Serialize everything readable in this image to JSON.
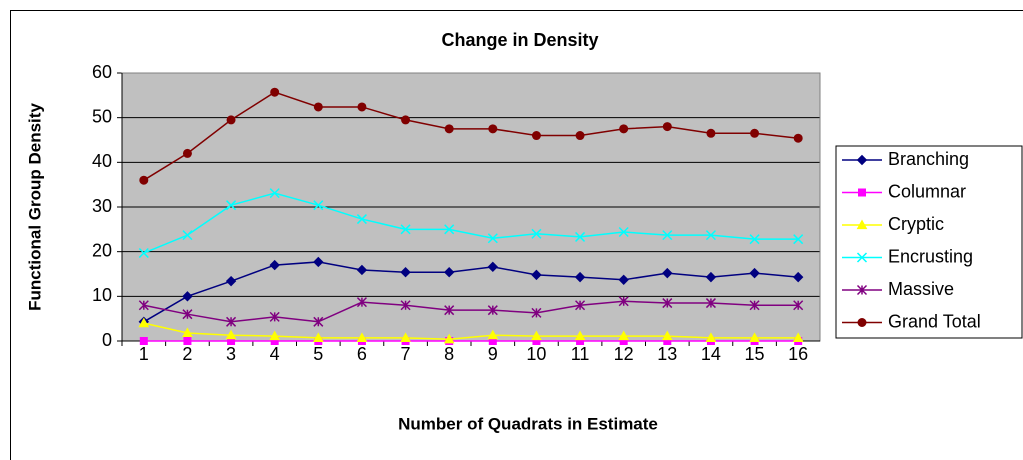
{
  "chart_data": {
    "type": "line",
    "title": "Change in Density",
    "x_label": "Number of Quadrats in Estimate",
    "y_label": "Functional Group Density",
    "categories": [
      "1",
      "2",
      "3",
      "4",
      "5",
      "6",
      "7",
      "8",
      "9",
      "10",
      "11",
      "12",
      "13",
      "14",
      "15",
      "16"
    ],
    "ylim": [
      0,
      60
    ],
    "yticks": [
      0,
      10,
      20,
      30,
      40,
      50,
      60
    ],
    "grid": true,
    "legend": "right",
    "series": [
      {
        "name": "Branching",
        "color": "#000080",
        "marker": "diamond",
        "values": [
          4.3,
          10,
          13.4,
          17,
          17.7,
          15.9,
          15.4,
          15.4,
          16.6,
          14.8,
          14.3,
          13.7,
          15.2,
          14.3,
          15.2,
          14.3
        ]
      },
      {
        "name": "Columnar",
        "color": "#ff00ff",
        "marker": "square",
        "values": [
          0,
          0,
          0,
          0,
          0,
          0,
          0,
          0,
          0,
          0,
          0,
          0,
          0,
          0,
          0,
          0
        ]
      },
      {
        "name": "Cryptic",
        "color": "#ffff00",
        "marker": "triangle",
        "values": [
          4,
          1.8,
          1.3,
          1.1,
          0.7,
          0.7,
          0.7,
          0.4,
          1.3,
          1.1,
          1.1,
          1.1,
          1.1,
          0.7,
          0.7,
          0.7
        ]
      },
      {
        "name": "Encrusting",
        "color": "#00ffff",
        "marker": "x",
        "values": [
          19.7,
          23.7,
          30.4,
          33.1,
          30.4,
          27.3,
          25,
          25,
          23,
          24,
          23.3,
          24.4,
          23.7,
          23.7,
          22.8,
          22.8
        ]
      },
      {
        "name": "Massive",
        "color": "#800080",
        "marker": "star",
        "values": [
          8,
          6,
          4.3,
          5.4,
          4.3,
          8.7,
          8,
          6.9,
          6.9,
          6.3,
          8,
          8.9,
          8.5,
          8.5,
          8,
          8
        ]
      },
      {
        "name": "Grand Total",
        "color": "#800000",
        "marker": "circle",
        "values": [
          36,
          42,
          49.5,
          55.7,
          52.4,
          52.4,
          49.5,
          47.5,
          47.5,
          46,
          46,
          47.5,
          48,
          46.5,
          46.5,
          45.4
        ]
      }
    ]
  }
}
